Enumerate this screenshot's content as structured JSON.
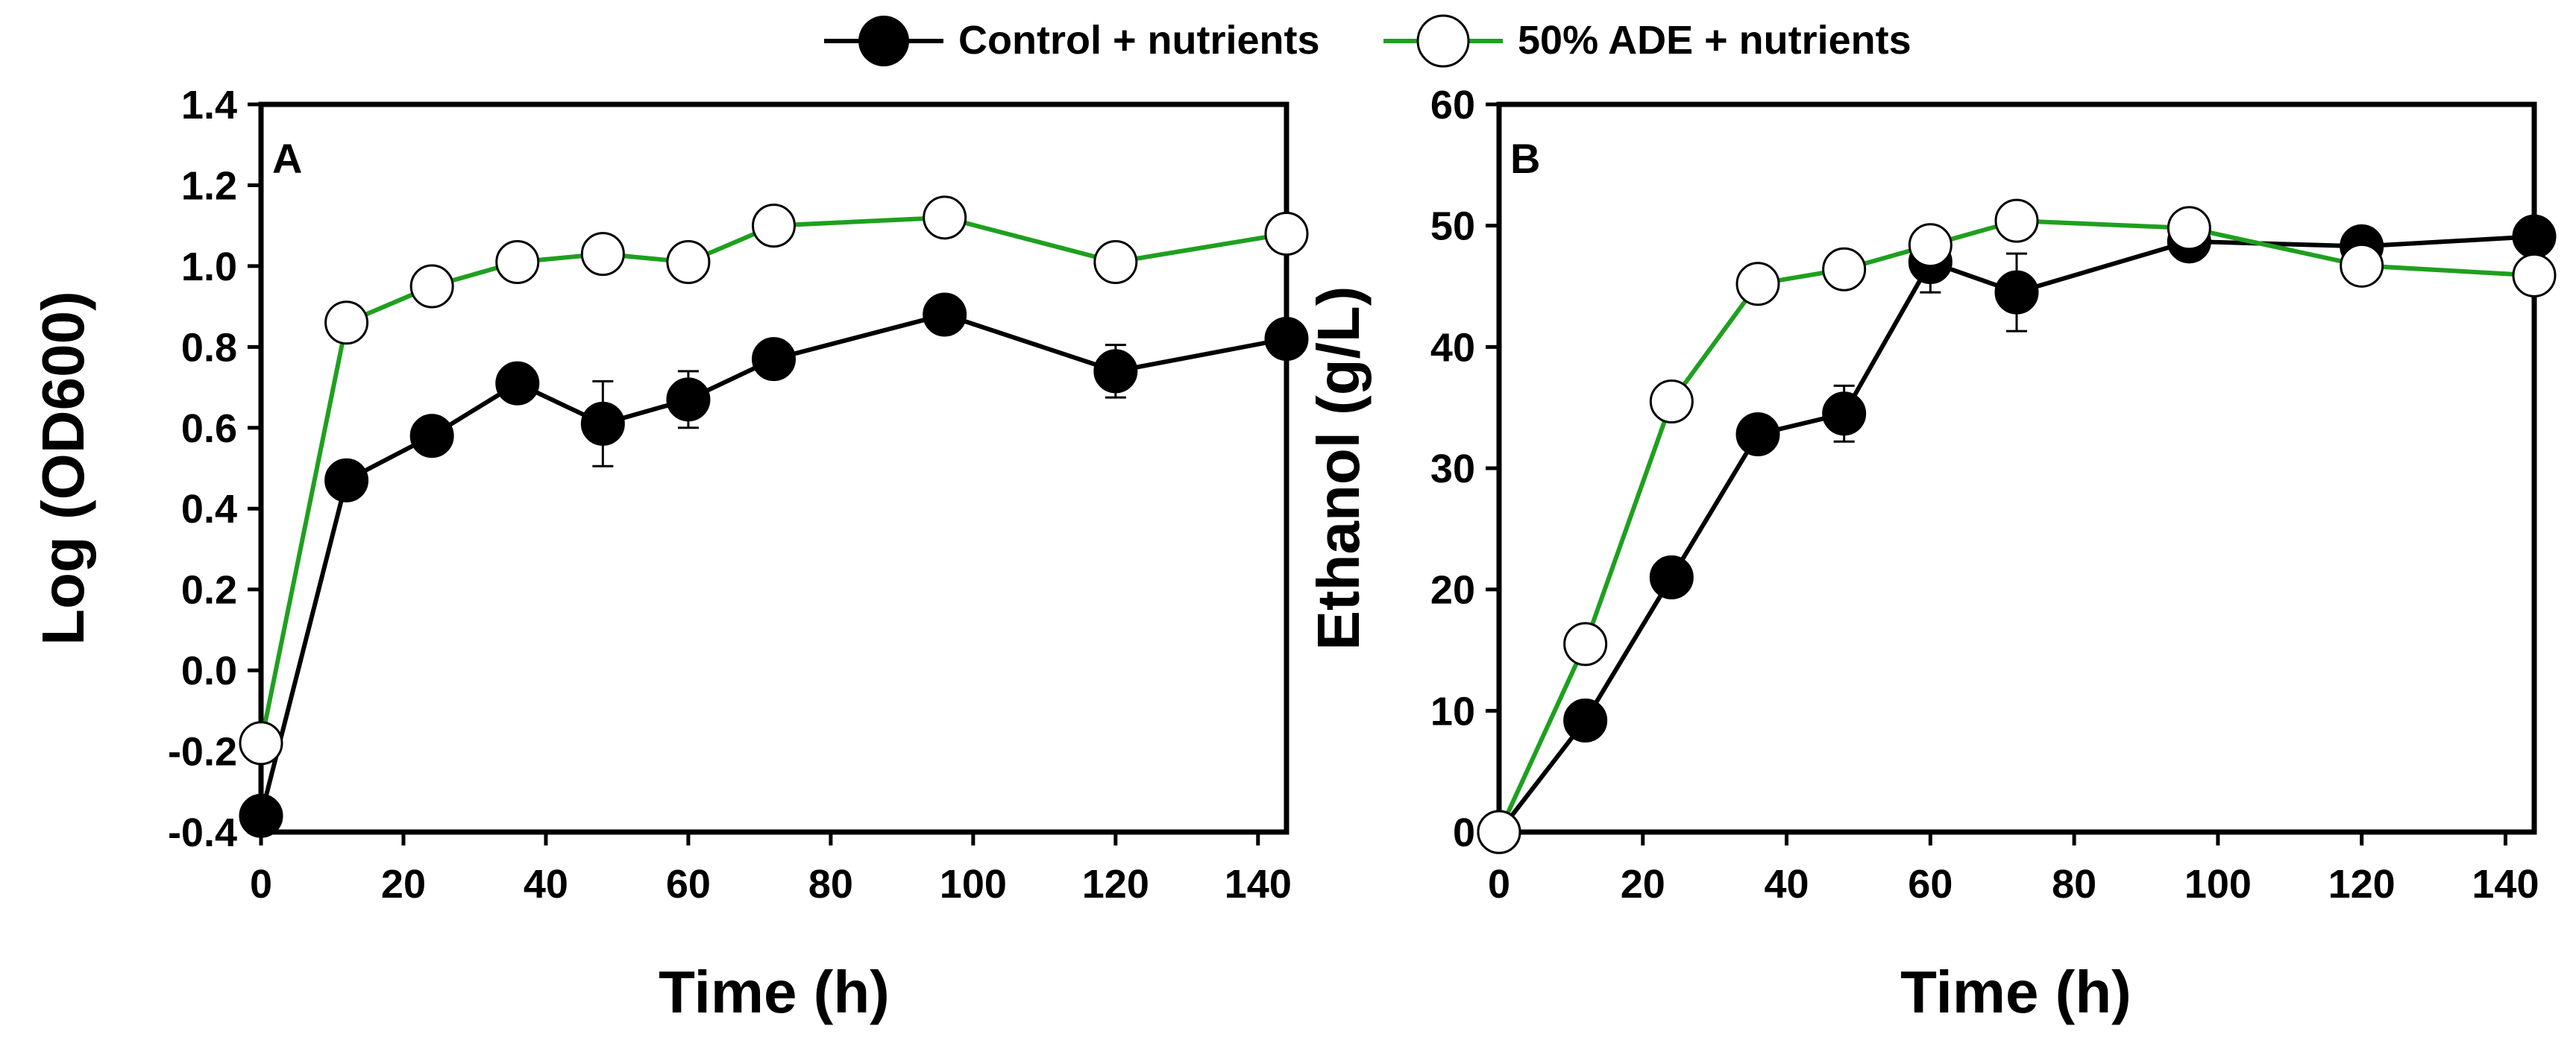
{
  "legend": {
    "items": [
      {
        "label": "Control + nutrients",
        "marker": "filled-circle",
        "color": "#000000"
      },
      {
        "label": "50% ADE + nutrients",
        "marker": "open-circle",
        "color": "#1ea01e"
      }
    ]
  },
  "colors": {
    "control_line": "#000000",
    "ade_line": "#1ea01e",
    "marker_fill_open": "#ffffff",
    "marker_fill_filled": "#000000"
  },
  "chart_data": [
    {
      "type": "line",
      "panel_label": "A",
      "title": "",
      "xlabel": "Time (h)",
      "ylabel": "Log (OD600)",
      "xlim": [
        0,
        144
      ],
      "ylim": [
        -0.4,
        1.4
      ],
      "xticks": [
        0,
        20,
        40,
        60,
        80,
        100,
        120,
        140
      ],
      "xtick_labels": [
        "0",
        "20",
        "40",
        "60",
        "80",
        "100",
        "120",
        "140"
      ],
      "yticks": [
        -0.4,
        -0.2,
        0.0,
        0.2,
        0.4,
        0.6,
        0.8,
        1.0,
        1.2,
        1.4
      ],
      "ytick_labels": [
        "-0.4",
        "-0.2",
        "0.0",
        "0.2",
        "0.4",
        "0.6",
        "0.8",
        "1.0",
        "1.2",
        "1.4"
      ],
      "grid": false,
      "series": [
        {
          "name": "Control + nutrients",
          "x": [
            0,
            12,
            24,
            36,
            48,
            60,
            72,
            96,
            120,
            144
          ],
          "values": [
            -0.36,
            0.47,
            0.58,
            0.71,
            0.61,
            0.67,
            0.77,
            0.88,
            0.74,
            0.82
          ],
          "errors": [
            0,
            0,
            0,
            0,
            0.105,
            0.07,
            0,
            0,
            0.065,
            0
          ]
        },
        {
          "name": "50% ADE + nutrients",
          "x": [
            0,
            12,
            24,
            36,
            48,
            60,
            72,
            96,
            120,
            144
          ],
          "values": [
            -0.18,
            0.86,
            0.95,
            1.01,
            1.03,
            1.01,
            1.1,
            1.12,
            1.01,
            1.08
          ],
          "errors": [
            0,
            0,
            0,
            0,
            0,
            0,
            0,
            0,
            0,
            0
          ]
        }
      ]
    },
    {
      "type": "line",
      "panel_label": "B",
      "title": "",
      "xlabel": "Time (h)",
      "ylabel": "Ethanol (g/L)",
      "xlim": [
        0,
        144
      ],
      "ylim": [
        0,
        60
      ],
      "xticks": [
        0,
        20,
        40,
        60,
        80,
        100,
        120,
        140
      ],
      "xtick_labels": [
        "0",
        "20",
        "40",
        "60",
        "80",
        "100",
        "120",
        "140"
      ],
      "yticks": [
        0,
        10,
        20,
        30,
        40,
        50,
        60
      ],
      "ytick_labels": [
        "0",
        "10",
        "20",
        "30",
        "40",
        "50",
        "60"
      ],
      "grid": false,
      "series": [
        {
          "name": "Control + nutrients",
          "x": [
            0,
            12,
            24,
            36,
            48,
            60,
            72,
            96,
            120,
            144
          ],
          "values": [
            0,
            9.2,
            21.0,
            32.8,
            34.5,
            47.0,
            44.5,
            48.7,
            48.3,
            49.1
          ],
          "errors": [
            0,
            0,
            0,
            0,
            2.3,
            2.5,
            3.2,
            0,
            0,
            0
          ]
        },
        {
          "name": "50% ADE + nutrients",
          "x": [
            0,
            12,
            24,
            36,
            48,
            60,
            72,
            96,
            120,
            144
          ],
          "values": [
            0,
            15.5,
            35.5,
            45.2,
            46.4,
            48.4,
            50.4,
            49.8,
            46.7,
            45.9
          ],
          "errors": [
            0,
            0,
            0,
            0,
            0,
            0,
            0,
            0,
            0,
            0
          ]
        }
      ]
    }
  ]
}
